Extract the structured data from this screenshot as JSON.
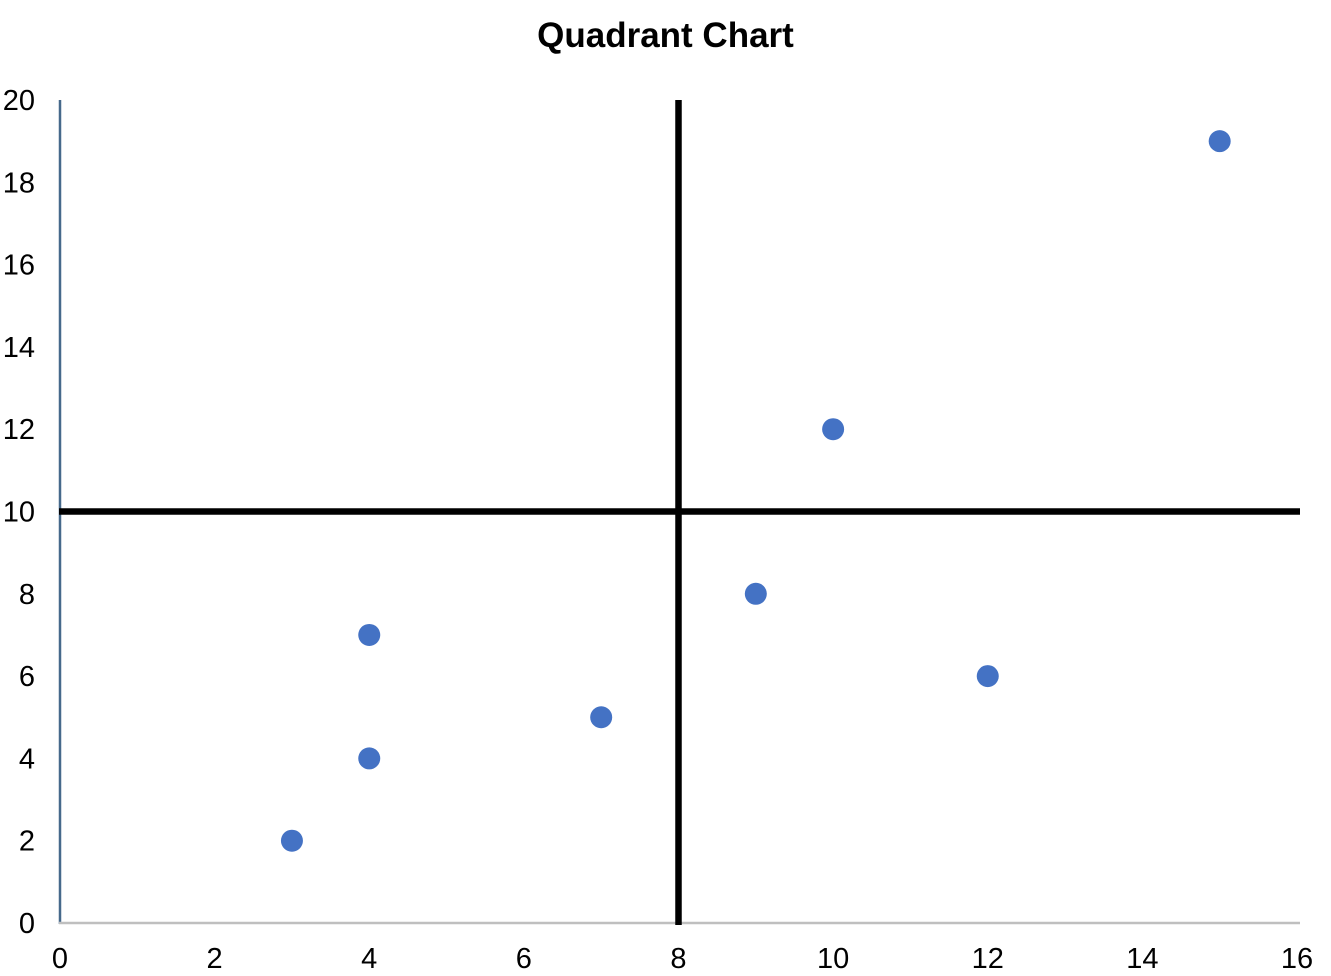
{
  "title": "Quadrant Chart",
  "chart_data": {
    "type": "scatter",
    "title": "Quadrant Chart",
    "xlabel": "",
    "ylabel": "",
    "xlim": [
      0,
      16
    ],
    "ylim": [
      0,
      20
    ],
    "x_ticks": [
      "0",
      "2",
      "4",
      "6",
      "8",
      "10",
      "12",
      "14",
      "16"
    ],
    "x_tick_values": [
      0,
      2,
      4,
      6,
      8,
      10,
      12,
      14,
      16
    ],
    "y_ticks": [
      "0",
      "2",
      "4",
      "6",
      "8",
      "10",
      "12",
      "14",
      "16",
      "18",
      "20"
    ],
    "y_tick_values": [
      0,
      2,
      4,
      6,
      8,
      10,
      12,
      14,
      16,
      18,
      20
    ],
    "grid": false,
    "legend": false,
    "quadrant_lines": {
      "x": 8,
      "y": 10
    },
    "points": [
      {
        "x": 3,
        "y": 2
      },
      {
        "x": 4,
        "y": 4
      },
      {
        "x": 4,
        "y": 7
      },
      {
        "x": 7,
        "y": 5
      },
      {
        "x": 9,
        "y": 8
      },
      {
        "x": 10,
        "y": 12
      },
      {
        "x": 12,
        "y": 6
      },
      {
        "x": 15,
        "y": 19
      }
    ],
    "colors": {
      "point": "#4472C4",
      "quadrant_line": "#000000",
      "y_axis_line": "#46698B",
      "x_axis_line": "#BFBFBF",
      "text": "#000000"
    }
  }
}
